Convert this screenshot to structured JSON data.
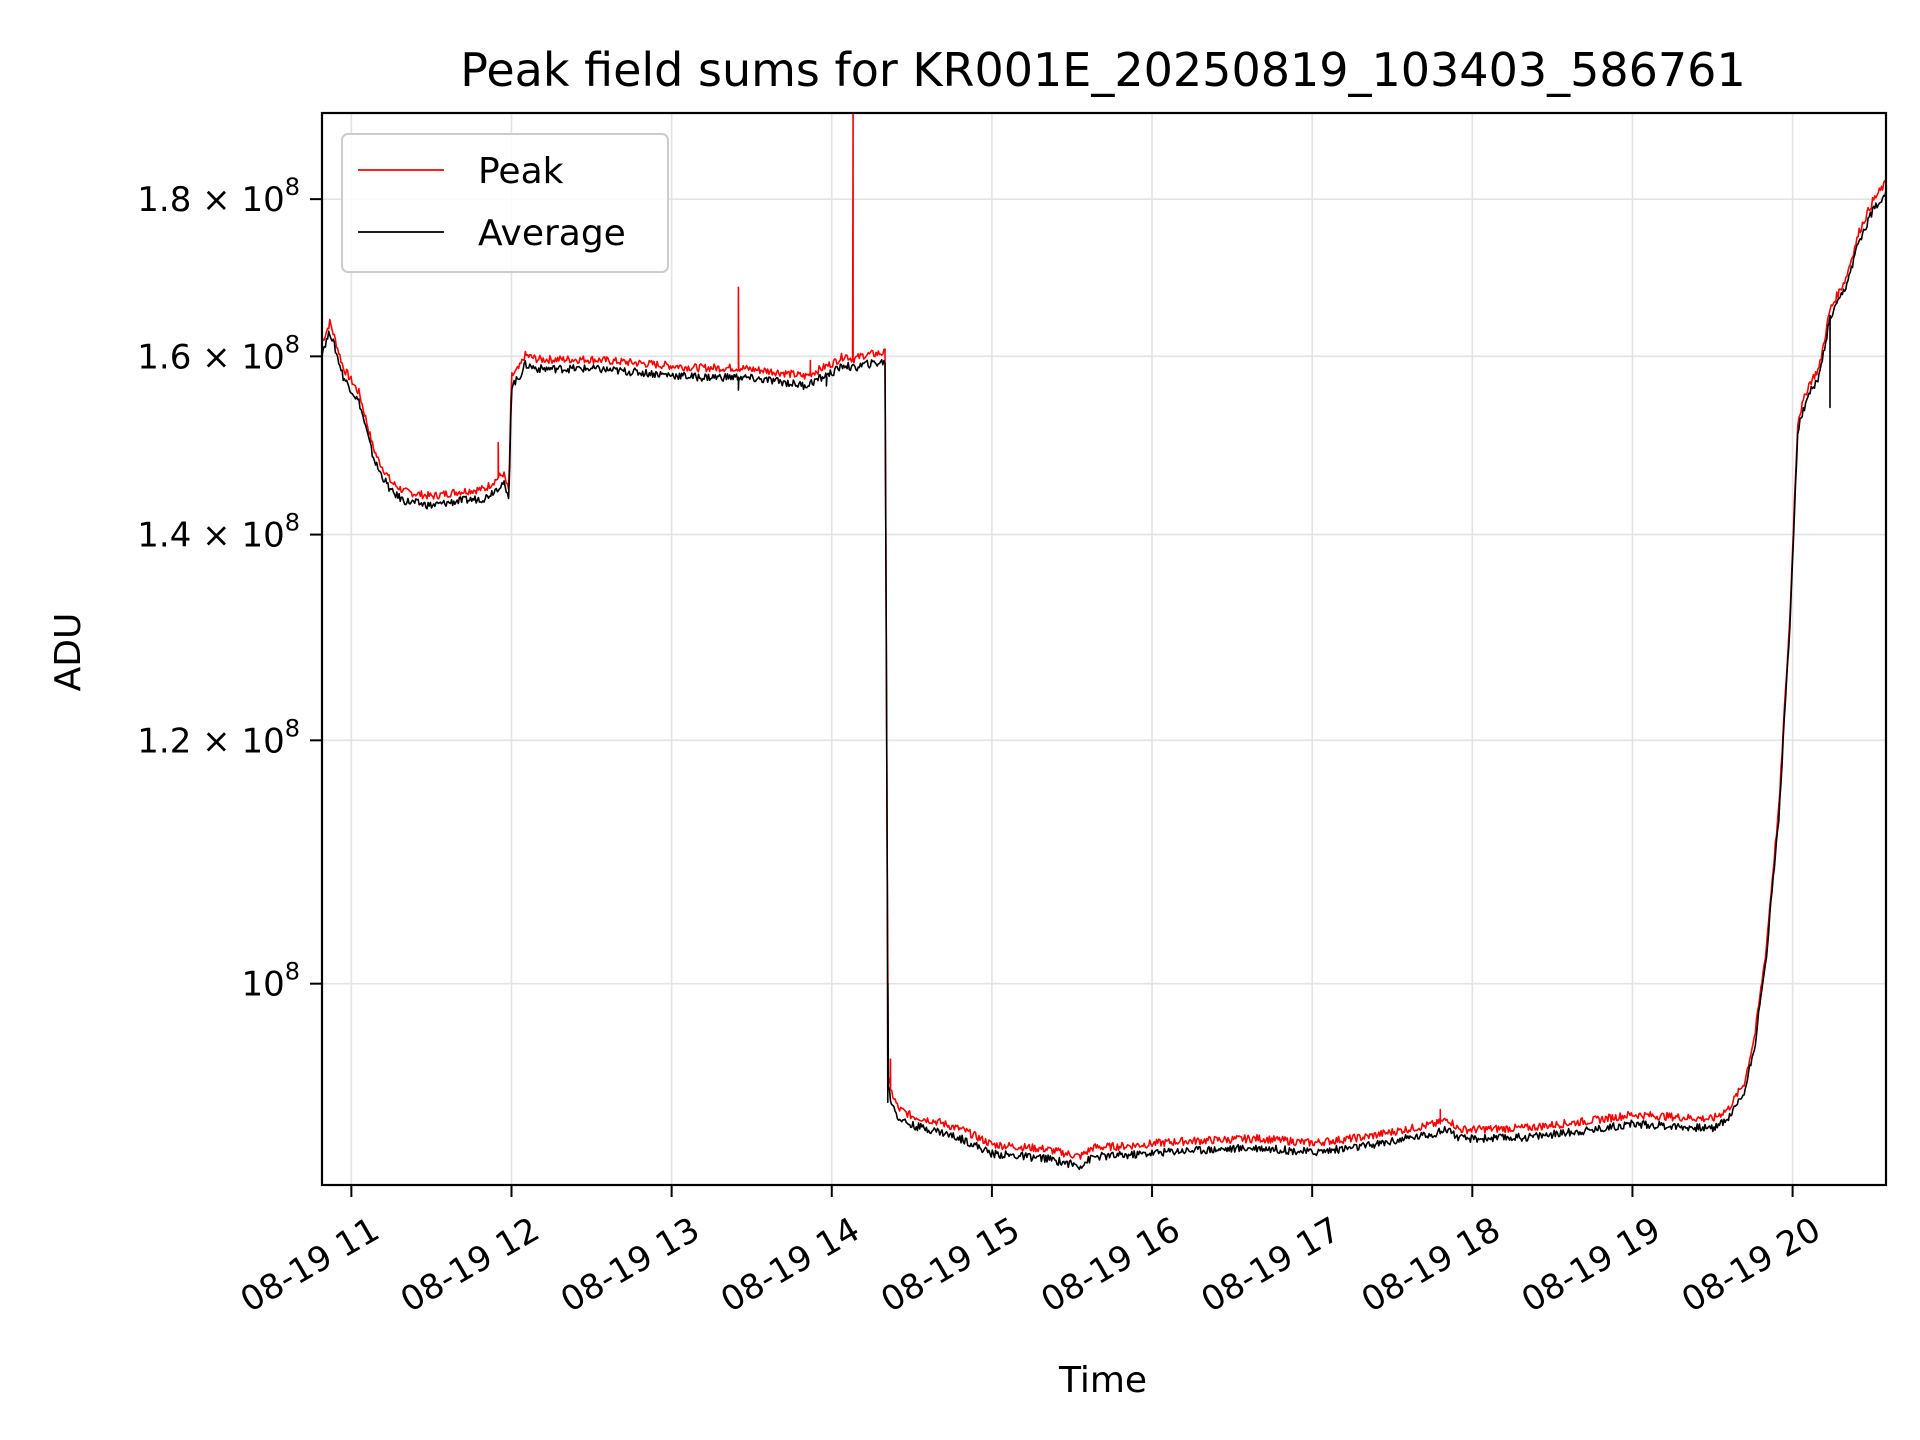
{
  "chart_data": {
    "type": "line",
    "title": "Peak field sums for KR001E_20250819_103403_586761",
    "xlabel": "Time",
    "ylabel": "ADU",
    "x_axis": {
      "type": "time",
      "range": [
        "2025-08-19 10:49",
        "2025-08-19 20:35"
      ],
      "tick_values": [
        "2025-08-19 11:00",
        "2025-08-19 12:00",
        "2025-08-19 13:00",
        "2025-08-19 14:00",
        "2025-08-19 15:00",
        "2025-08-19 16:00",
        "2025-08-19 17:00",
        "2025-08-19 18:00",
        "2025-08-19 19:00",
        "2025-08-19 20:00"
      ],
      "tick_labels": [
        "08-19 11",
        "08-19 12",
        "08-19 13",
        "08-19 14",
        "08-19 15",
        "08-19 16",
        "08-19 17",
        "08-19 18",
        "08-19 19",
        "08-19 20"
      ]
    },
    "y_axis": {
      "scale": "log",
      "range": [
        86000000,
        192000000
      ],
      "ticks": [
        {
          "value": 100000000,
          "mantissa": "",
          "exponent": "8"
        },
        {
          "value": 120000000,
          "mantissa": "1.2",
          "exponent": "8"
        },
        {
          "value": 140000000,
          "mantissa": "1.4",
          "exponent": "8"
        },
        {
          "value": 160000000,
          "mantissa": "1.6",
          "exponent": "8"
        },
        {
          "value": 180000000,
          "mantissa": "1.8",
          "exponent": "8"
        }
      ]
    },
    "grid": true,
    "legend": {
      "position": "top-left",
      "entries": [
        {
          "name": "Peak",
          "color": "#ff0000"
        },
        {
          "name": "Average",
          "color": "#000000"
        }
      ]
    },
    "base_series": {
      "x": [
        "2025-08-19 10:49",
        "2025-08-19 10:52",
        "2025-08-19 10:57",
        "2025-08-19 11:03",
        "2025-08-19 11:08",
        "2025-08-19 11:10",
        "2025-08-19 11:15",
        "2025-08-19 11:20",
        "2025-08-19 11:30",
        "2025-08-19 11:40",
        "2025-08-19 11:50",
        "2025-08-19 11:55",
        "2025-08-19 11:57",
        "2025-08-19 11:59",
        "2025-08-19 12:00",
        "2025-08-19 12:03",
        "2025-08-19 12:05",
        "2025-08-19 12:10",
        "2025-08-19 12:30",
        "2025-08-19 12:50",
        "2025-08-19 13:10",
        "2025-08-19 13:25",
        "2025-08-19 13:40",
        "2025-08-19 13:50",
        "2025-08-19 14:00",
        "2025-08-19 14:05",
        "2025-08-19 14:08",
        "2025-08-19 14:12",
        "2025-08-19 14:20",
        "2025-08-19 14:20.6",
        "2025-08-19 14:21.2",
        "2025-08-19 14:22",
        "2025-08-19 14:25",
        "2025-08-19 14:30",
        "2025-08-19 14:40",
        "2025-08-19 14:50",
        "2025-08-19 15:00",
        "2025-08-19 15:20",
        "2025-08-19 15:33",
        "2025-08-19 15:38",
        "2025-08-19 15:50",
        "2025-08-19 16:10",
        "2025-08-19 16:40",
        "2025-08-19 17:00",
        "2025-08-19 17:20",
        "2025-08-19 17:35",
        "2025-08-19 17:47",
        "2025-08-19 17:51",
        "2025-08-19 17:55",
        "2025-08-19 18:00",
        "2025-08-19 18:20",
        "2025-08-19 18:45",
        "2025-08-19 19:00",
        "2025-08-19 19:20",
        "2025-08-19 19:30",
        "2025-08-19 19:36",
        "2025-08-19 19:42",
        "2025-08-19 19:46",
        "2025-08-19 19:50",
        "2025-08-19 19:55",
        "2025-08-19 19:59",
        "2025-08-19 20:02",
        "2025-08-19 20:06",
        "2025-08-19 20:10",
        "2025-08-19 20:14",
        "2025-08-19 20:20",
        "2025-08-19 20:25",
        "2025-08-19 20:30",
        "2025-08-19 20:35"
      ],
      "y": [
        161000000,
        163500000,
        158000000,
        155000000,
        149000000,
        147500000,
        145000000,
        144000000,
        143500000,
        144000000,
        144300000,
        145500000,
        146000000,
        144000000,
        157000000,
        158000000,
        159500000,
        159000000,
        159000000,
        158500000,
        158000000,
        158000000,
        157500000,
        157000000,
        158500000,
        159500000,
        159000000,
        159500000,
        159800000,
        115000000,
        93000000,
        92000000,
        90700000,
        90200000,
        89800000,
        89200000,
        88300000,
        88000000,
        87500000,
        88100000,
        88200000,
        88500000,
        88700000,
        88400000,
        88800000,
        89300000,
        89700000,
        90000000,
        89300000,
        89300000,
        89400000,
        89900000,
        90300000,
        90100000,
        90000000,
        90700000,
        92500000,
        96000000,
        102000000,
        114000000,
        131000000,
        152000000,
        156000000,
        158000000,
        165000000,
        169000000,
        175000000,
        179000000,
        181500000
      ]
    },
    "series": [
      {
        "name": "Peak",
        "color": "#ff0000",
        "offset": 1.004,
        "spikes": [
          {
            "x": "2025-08-19 11:55",
            "y": 150000000
          },
          {
            "x": "2025-08-19 13:25",
            "y": 168500000
          },
          {
            "x": "2025-08-19 13:52",
            "y": 159500000
          },
          {
            "x": "2025-08-19 14:08",
            "y": 192000000
          },
          {
            "x": "2025-08-19 14:22",
            "y": 94500000
          },
          {
            "x": "2025-08-19 17:48",
            "y": 91000000
          }
        ]
      },
      {
        "name": "Average",
        "color": "#000000",
        "offset": 0.997,
        "spikes": [
          {
            "x": "2025-08-19 13:25",
            "y": 156000000
          },
          {
            "x": "2025-08-19 13:58",
            "y": 156500000
          },
          {
            "x": "2025-08-19 14:21",
            "y": 91500000
          },
          {
            "x": "2025-08-19 20:14",
            "y": 154000000
          }
        ]
      }
    ]
  }
}
